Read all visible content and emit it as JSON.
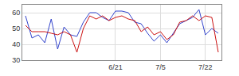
{
  "chart_data": {
    "type": "line",
    "categories": [
      null,
      null,
      null,
      null,
      null,
      null,
      null,
      null,
      null,
      null,
      null,
      null,
      null,
      null,
      "6/21",
      null,
      null,
      null,
      null,
      null,
      null,
      "7/5",
      null,
      null,
      null,
      null,
      null,
      null,
      "7/22",
      null,
      null
    ],
    "series": [
      {
        "color": "#3344cc",
        "values": [
          58,
          44,
          46,
          41,
          56,
          37,
          51,
          46,
          45,
          54,
          60,
          60,
          57,
          55,
          61,
          61,
          60,
          54,
          53,
          47,
          42,
          46,
          41,
          47,
          53,
          55,
          57,
          62,
          46,
          50,
          47
        ]
      },
      {
        "color": "#cc1111",
        "values": [
          52,
          48,
          48,
          48,
          47,
          46,
          48,
          46,
          35,
          50,
          58,
          56,
          58,
          55,
          57,
          58,
          56,
          55,
          48,
          51,
          46,
          48,
          43,
          46,
          54,
          55,
          58,
          55,
          58,
          57,
          35
        ]
      }
    ],
    "ylim": [
      30,
      65
    ],
    "yticks": [
      30,
      40,
      50,
      60
    ],
    "grid": true
  }
}
